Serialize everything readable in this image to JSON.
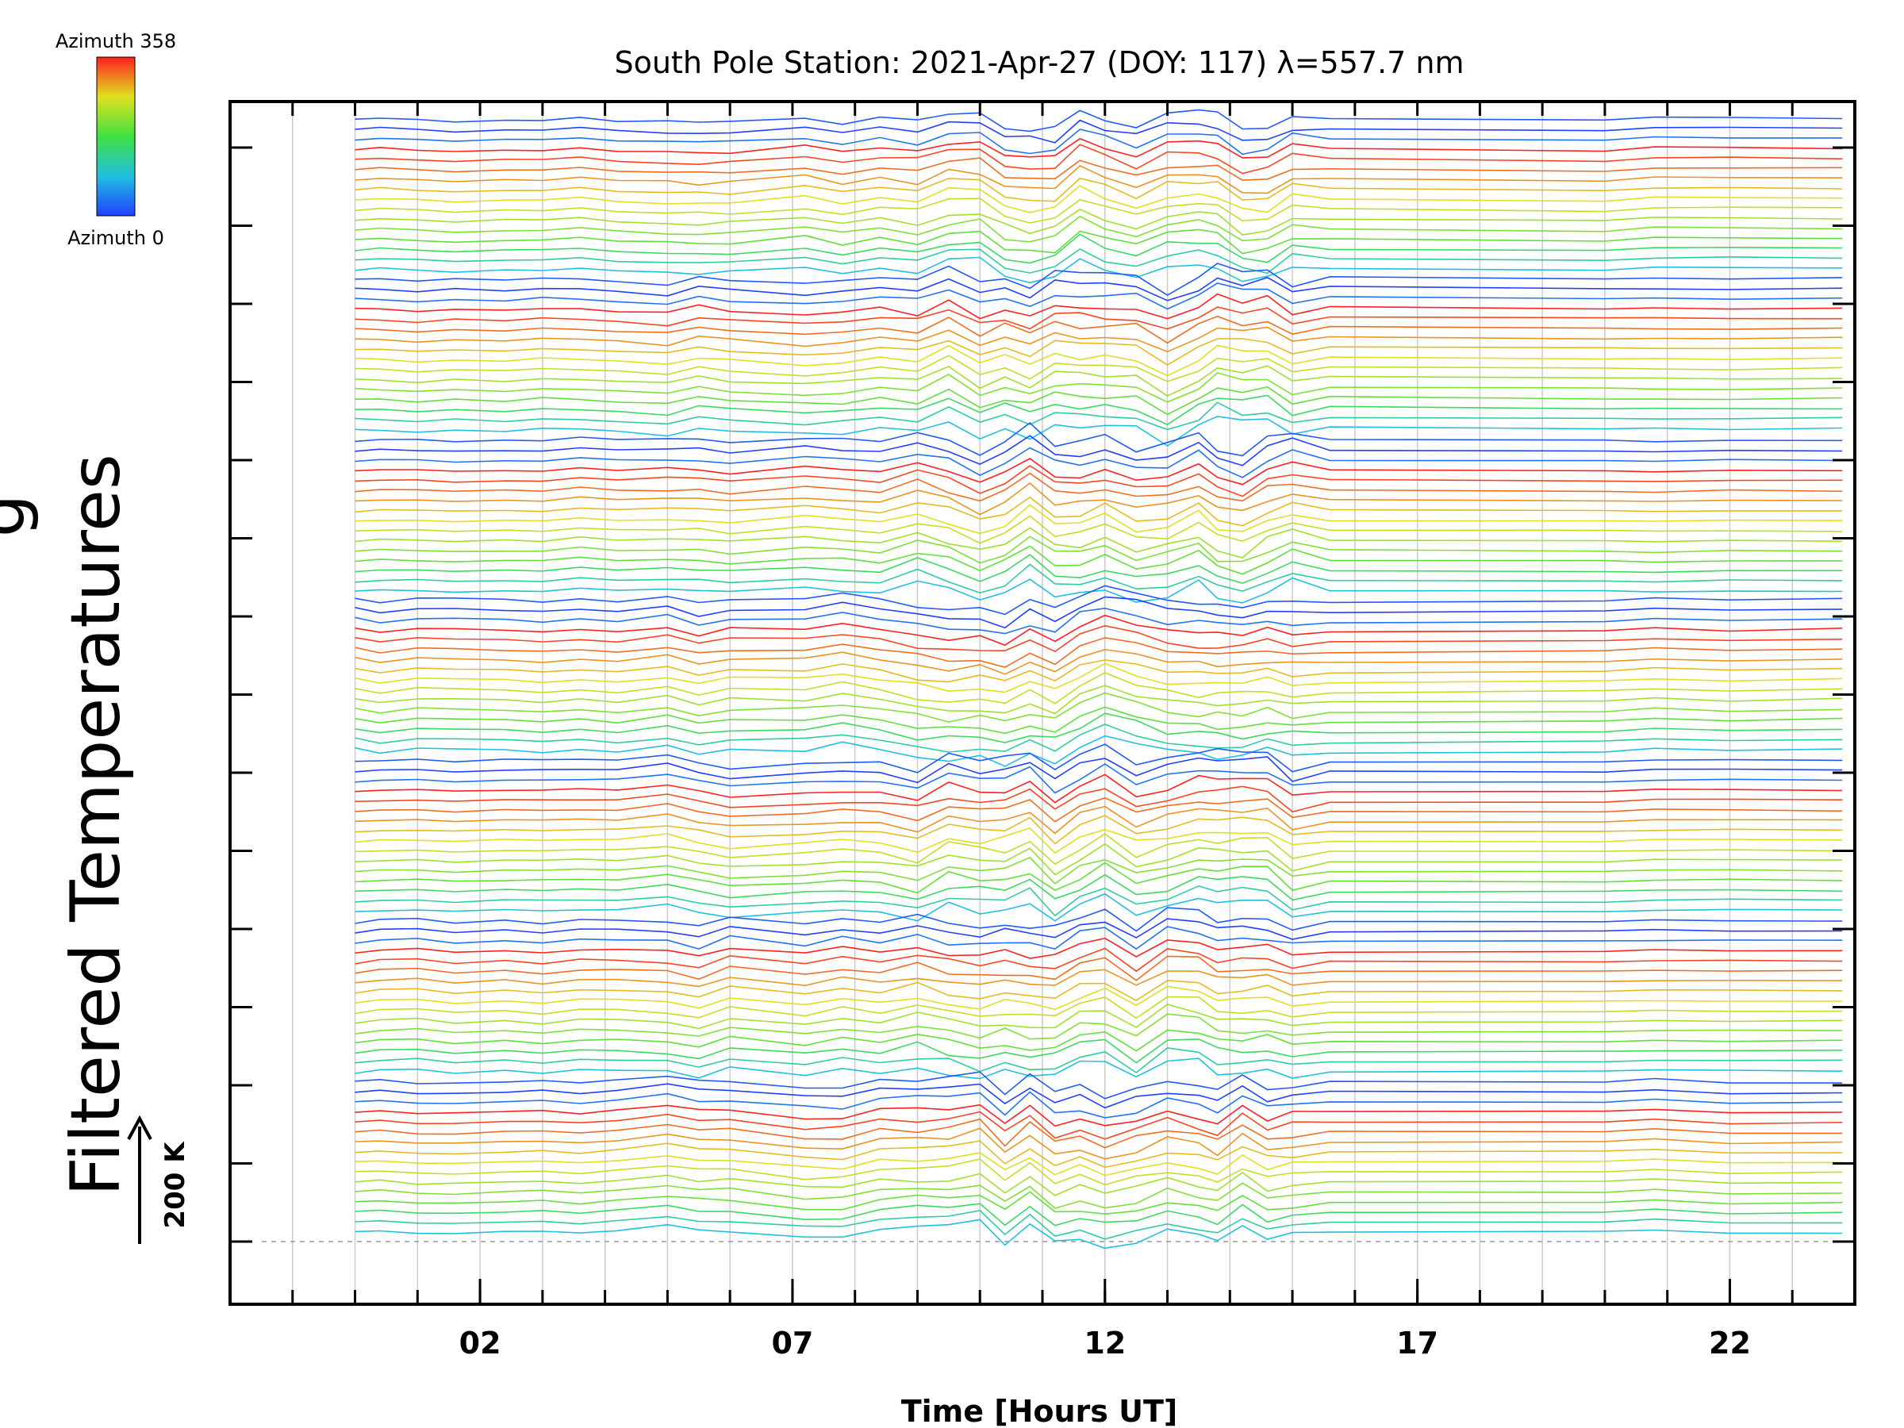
{
  "chart_data": {
    "type": "line",
    "title": "South Pole Station: 2021-Apr-27 (DOY: 117) λ=557.7 nm",
    "xlabel": "Time [Hours UT]",
    "ylabel": "Filtered Temperatures",
    "ylabel_cut": "g",
    "x_ticks": [
      "02",
      "07",
      "12",
      "17",
      "22"
    ],
    "x_tick_values": [
      2,
      7,
      12,
      17,
      22
    ],
    "xlim": [
      -2,
      24
    ],
    "x_minor_step": 1,
    "x_data_start": 0,
    "x_data_end": 23.8,
    "n_groups": 7,
    "lines_per_group": 16,
    "colorbar": {
      "top_label": "Azimuth 358",
      "bottom_label": "Azimuth 0",
      "azimuth_min": 0,
      "azimuth_max": 358
    },
    "scale_bar": {
      "label": "200 K",
      "kelvin": 200
    },
    "colors": {
      "axis": "#000000",
      "grid": "#cccccc",
      "baseline": "#999999"
    }
  }
}
